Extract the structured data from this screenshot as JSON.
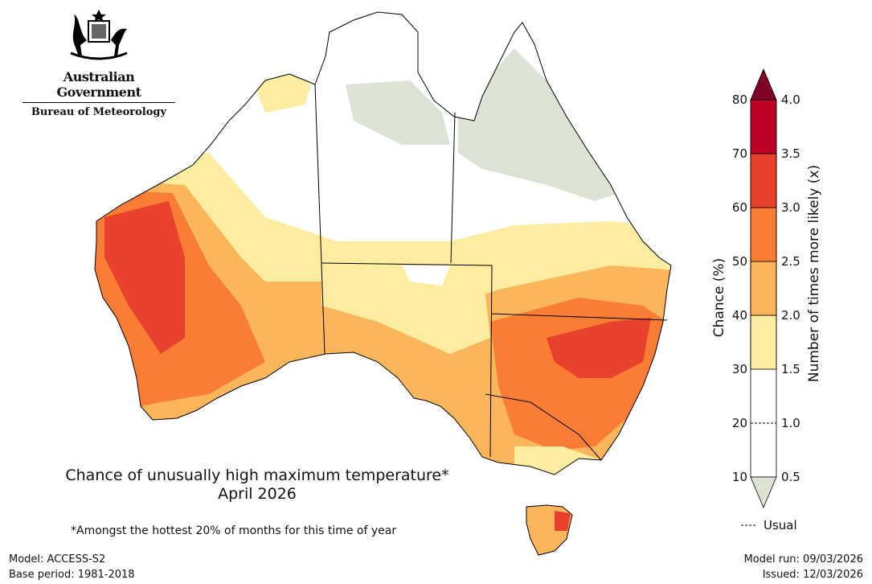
{
  "header": {
    "agency": "Australian Government",
    "bureau": "Bureau of Meteorology"
  },
  "map": {
    "title_line1": "Chance of unusually high maximum temperature*",
    "title_line2": "April 2026",
    "footnote": "*Amongst the hottest 20% of months for this time of year"
  },
  "meta": {
    "model": "Model: ACCESS-S2",
    "base_period": "Base period: 1981-2018",
    "model_run": "Model run: 09/03/2026",
    "issued": "Issued: 12/03/2026"
  },
  "legend": {
    "left_label": "Chance (%)",
    "right_label": "Number of times more likely (x)",
    "left_ticks": [
      "10",
      "20",
      "30",
      "40",
      "50",
      "60",
      "70",
      "80"
    ],
    "right_ticks": [
      "0.5",
      "1.0",
      "1.5",
      "2.0",
      "2.5",
      "3.0",
      "3.5",
      "4.0"
    ],
    "usual_label": "Usual",
    "colors": {
      "below": "#dde3d4",
      "10-30": "#ffffff",
      "30-40": "#fdeda0",
      "40-50": "#fbb65c",
      "50-60": "#f97d34",
      "60-70": "#e8412c",
      "70-80": "#bd0026",
      "above": "#800026"
    }
  }
}
